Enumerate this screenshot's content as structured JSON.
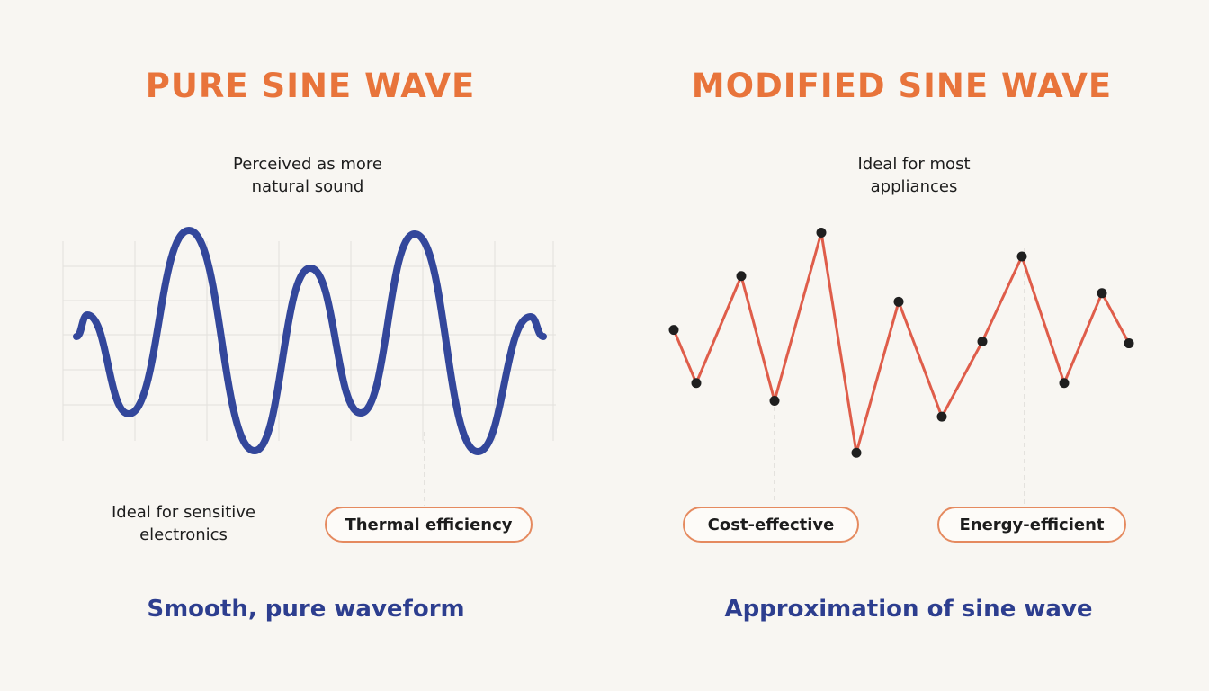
{
  "colors": {
    "title": "#e8743b",
    "caption": "#2d3e8f",
    "pure_wave": "#33479b",
    "modified_wave": "#df5d4a",
    "point": "#1f1f1f",
    "pill_border": "#e58a5f",
    "grid": "#e2e0dc"
  },
  "pure": {
    "title": "PURE SINE WAVE",
    "note_top": "Perceived as more\nnatural sound",
    "note_bottom": "Ideal for sensitive\nelectronics",
    "pill": "Thermal efficiency",
    "caption": "Smooth, pure waveform"
  },
  "modified": {
    "title": "MODIFIED SINE WAVE",
    "note_top": "Ideal for most\nappliances",
    "pill_left": "Cost-effective",
    "pill_right": "Energy-efficient",
    "caption": "Approximation of sine wave",
    "points": [
      0.05,
      -0.82,
      0.93,
      -1.11,
      1.64,
      -1.96,
      0.51,
      -1.37,
      -0.14,
      1.25,
      -0.82,
      0.65,
      -0.17
    ]
  }
}
